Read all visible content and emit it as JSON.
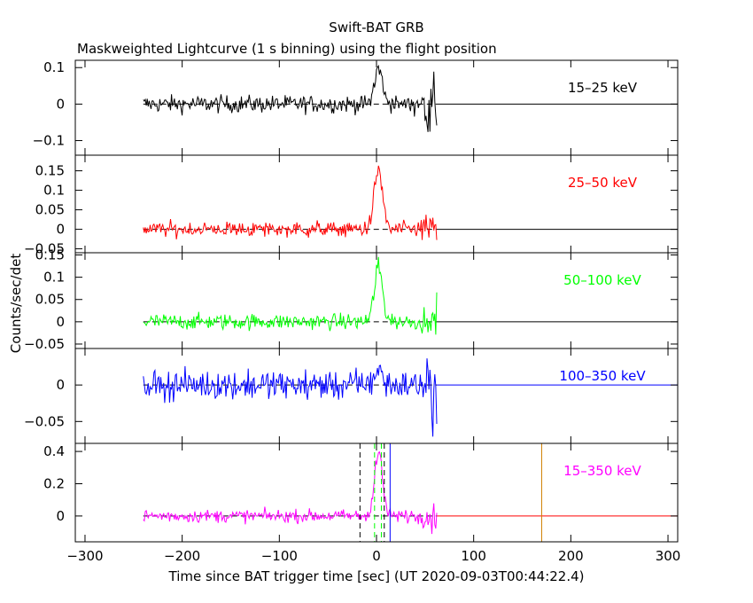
{
  "chart_data": {
    "type": "line",
    "title": "Swift-BAT GRB",
    "subtitle": "Maskweighted Lightcurve (1 s binning) using the flight position",
    "xlabel": "Time since BAT trigger time [sec] (UT 2020-09-03T00:44:22.4)",
    "ylabel": "Counts/sec/det",
    "xlim": [
      -310,
      310
    ],
    "xticks": [
      -300,
      -200,
      -100,
      0,
      100,
      200,
      300
    ],
    "xtick_labels": [
      "−300",
      "−200",
      "−100",
      "0",
      "100",
      "200",
      "300"
    ],
    "panels": [
      {
        "name": "15–25 keV",
        "color": "#000000",
        "ylim": [
          -0.14,
          0.12
        ],
        "yticks": [
          -0.1,
          0,
          0.1
        ],
        "ytick_labels": [
          "−0.1",
          "0",
          "0.1"
        ],
        "noise": 0.012,
        "peak": 0.095,
        "tail_noise": 0.06,
        "zero_line_color": "#000000"
      },
      {
        "name": "25–50 keV",
        "color": "#ff0000",
        "ylim": [
          -0.06,
          0.19
        ],
        "yticks": [
          -0.05,
          0,
          0.05,
          0.1,
          0.15
        ],
        "ytick_labels": [
          "−0.05",
          "0",
          "0.05",
          "0.1",
          "0.15"
        ],
        "noise": 0.01,
        "peak": 0.15,
        "tail_noise": 0.03,
        "zero_line_color": "#000000"
      },
      {
        "name": "50–100 keV",
        "color": "#00ff00",
        "ylim": [
          -0.06,
          0.155
        ],
        "yticks": [
          -0.05,
          0,
          0.05,
          0.1,
          0.15
        ],
        "ytick_labels": [
          "−0.05",
          "0",
          "0.05",
          "0.1",
          "0.15"
        ],
        "noise": 0.009,
        "peak": 0.12,
        "tail_noise": 0.03,
        "zero_line_color": "#000000"
      },
      {
        "name": "100–350 keV",
        "color": "#0000ff",
        "ylim": [
          -0.08,
          0.05
        ],
        "yticks": [
          -0.05,
          0
        ],
        "ytick_labels": [
          "−0.05",
          "0"
        ],
        "noise": 0.01,
        "peak": 0.02,
        "tail_noise": 0.04,
        "zero_line_color": "#0000ff"
      },
      {
        "name": "15–350 keV",
        "color": "#ff00ff",
        "ylim": [
          -0.16,
          0.45
        ],
        "yticks": [
          0,
          0.2,
          0.4
        ],
        "ytick_labels": [
          "0",
          "0.2",
          "0.4"
        ],
        "noise": 0.02,
        "peak": 0.38,
        "tail_noise": 0.06,
        "zero_line_color": "#ff0000"
      }
    ],
    "data_range": [
      -240,
      62
    ],
    "burst_peak_time": 2,
    "markers": [
      {
        "x": -17,
        "color": "#000000",
        "style": "dashed"
      },
      {
        "x": 8,
        "color": "#000000",
        "style": "dashed"
      },
      {
        "x": -2,
        "color": "#00ff00",
        "style": "dashed"
      },
      {
        "x": 5,
        "color": "#00ff00",
        "style": "dashed"
      },
      {
        "x": 14,
        "color": "#0000ff",
        "style": "solid"
      },
      {
        "x": 170,
        "color": "#d08000",
        "style": "solid"
      }
    ],
    "grid": false
  }
}
